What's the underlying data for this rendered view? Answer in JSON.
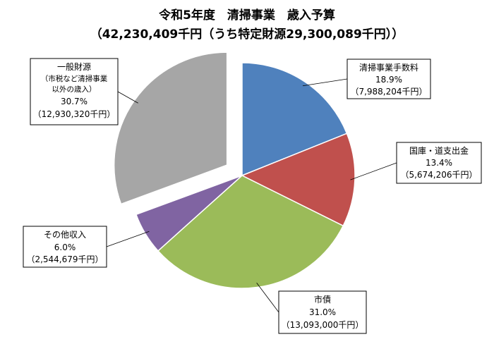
{
  "chart_data": {
    "type": "pie",
    "title": "令和5年度　清掃事業　歳入予算",
    "subtitle": "（42,230,409千円（うち特定財源29,300,089千円））",
    "slices": [
      {
        "name": "清掃事業手数料",
        "note": "",
        "percent": "18.9%",
        "amount": "（7,988,204千円）",
        "value": 7988204,
        "color": "#4f81bd",
        "exploded": false
      },
      {
        "name": "国庫・道支出金",
        "note": "",
        "percent": "13.4%",
        "amount": "（5,674,206千円）",
        "value": 5674206,
        "color": "#c0504d",
        "exploded": false
      },
      {
        "name": "市債",
        "note": "",
        "percent": "31.0%",
        "amount": "（13,093,000千円）",
        "value": 13093000,
        "color": "#9bbb59",
        "exploded": false
      },
      {
        "name": "その他収入",
        "note": "",
        "percent": "6.0%",
        "amount": "（2,544,679千円）",
        "value": 2544679,
        "color": "#8064a2",
        "exploded": false
      },
      {
        "name": "一般財源",
        "note_lines": [
          "（市税など清掃事業",
          "以外の歳入）"
        ],
        "percent": "30.7%",
        "amount": "（12,930,320千円）",
        "value": 12930320,
        "color": "#a6a6a6",
        "exploded": true
      }
    ]
  }
}
